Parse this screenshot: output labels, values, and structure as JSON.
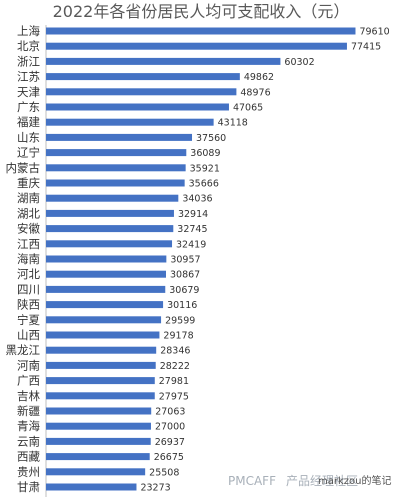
{
  "chart_data": {
    "type": "bar",
    "orientation": "horizontal",
    "title": "2022年各省份居民人均可支配收入（元）",
    "categories": [
      "上海",
      "北京",
      "浙江",
      "江苏",
      "天津",
      "广东",
      "福建",
      "山东",
      "辽宁",
      "内蒙古",
      "重庆",
      "湖南",
      "湖北",
      "安徽",
      "江西",
      "海南",
      "河北",
      "四川",
      "陕西",
      "宁夏",
      "山西",
      "黑龙江",
      "河南",
      "广西",
      "吉林",
      "新疆",
      "青海",
      "云南",
      "西藏",
      "贵州",
      "甘肃"
    ],
    "values": [
      79610,
      77415,
      60302,
      49862,
      48976,
      47065,
      43118,
      37560,
      36089,
      35921,
      35666,
      34036,
      32914,
      32745,
      32419,
      30957,
      30867,
      30679,
      30116,
      29599,
      29178,
      28346,
      28222,
      27981,
      27975,
      27063,
      27000,
      26937,
      26675,
      25508,
      23273
    ],
    "xlim": [
      0,
      80000
    ],
    "grid": false,
    "legend": "none",
    "bar_color": "#4472c4"
  },
  "watermark": {
    "brand": "PMCAFF",
    "brand_suffix": "产品经理社区",
    "account": "markzou的笔记"
  }
}
